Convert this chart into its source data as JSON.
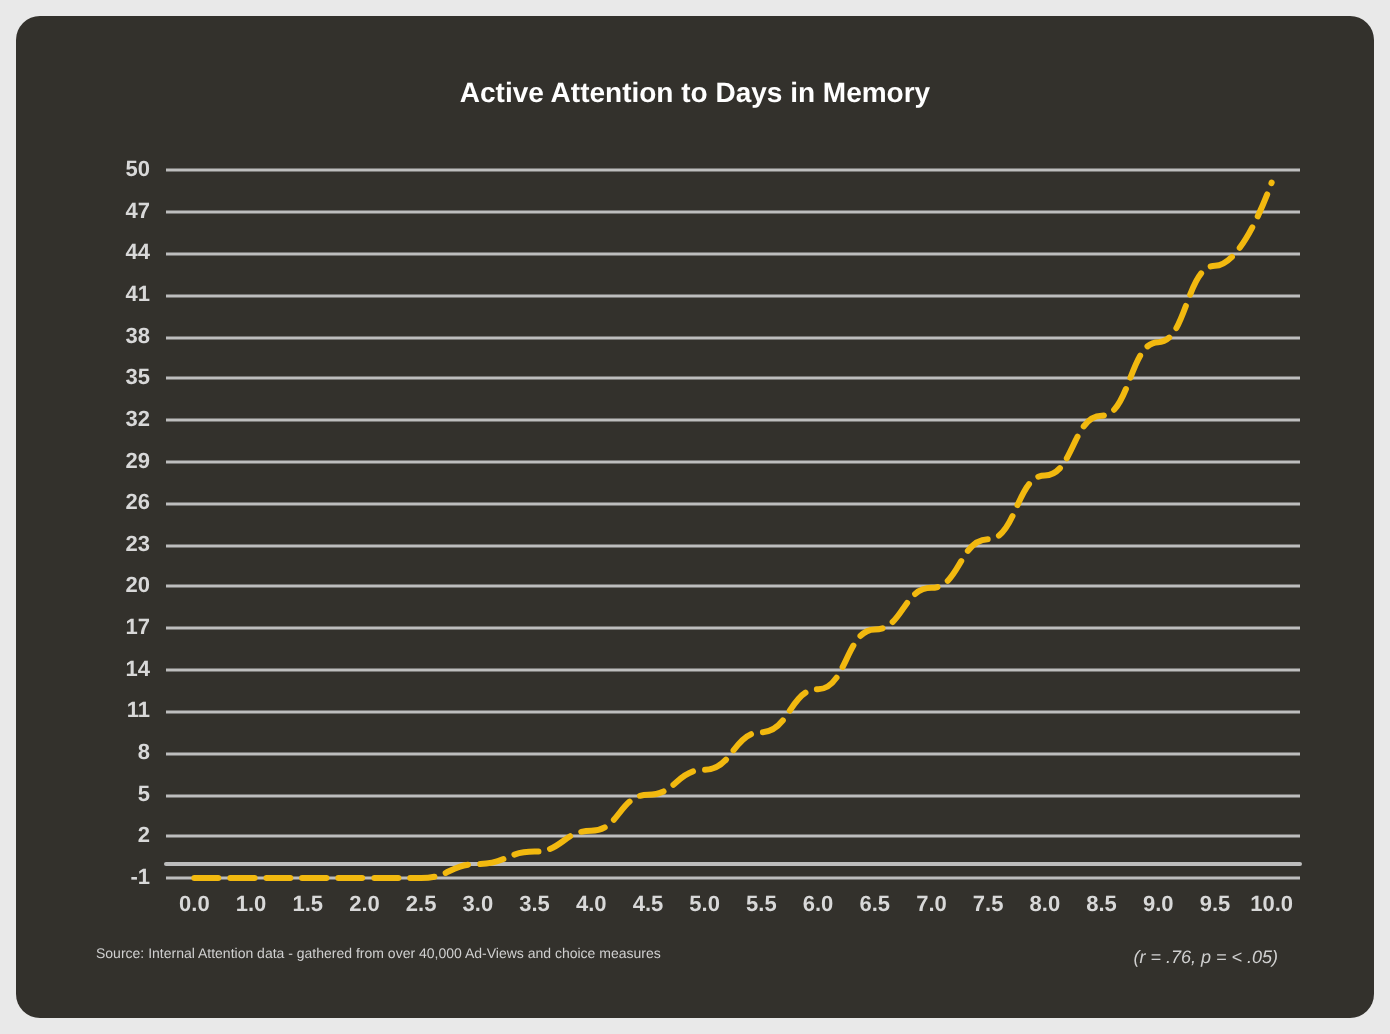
{
  "chart_data": {
    "type": "line",
    "title": "Active Attention to Days in Memory",
    "categories": [
      "0.0",
      "1.0",
      "1.5",
      "2.0",
      "2.5",
      "3.0",
      "3.5",
      "4.0",
      "4.5",
      "5.0",
      "5.5",
      "6.0",
      "6.5",
      "7.0",
      "7.5",
      "8.0",
      "8.5",
      "9.0",
      "9.5",
      "10.0"
    ],
    "values": [
      -1,
      -1,
      -1,
      -1,
      -1,
      0,
      0.9,
      2.4,
      5,
      6.8,
      9.5,
      12.6,
      16.9,
      19.9,
      23.4,
      28,
      32.3,
      37.6,
      43.1,
      49.1
    ],
    "color": "#f2b90f",
    "line_style": "dashed",
    "marker": "none",
    "ylim": [
      -1,
      50
    ],
    "yticks": [
      -1,
      {
        "value": 0,
        "label": null
      },
      2,
      5,
      8,
      11,
      14,
      17,
      20,
      23,
      26,
      29,
      32,
      35,
      38,
      41,
      44,
      47,
      50
    ],
    "grid": "y",
    "annotations": [
      "Source: Internal Attention data - gathered from over 40,000 Ad-Views and choice measures",
      "(r = .76, p = < .05)"
    ]
  }
}
